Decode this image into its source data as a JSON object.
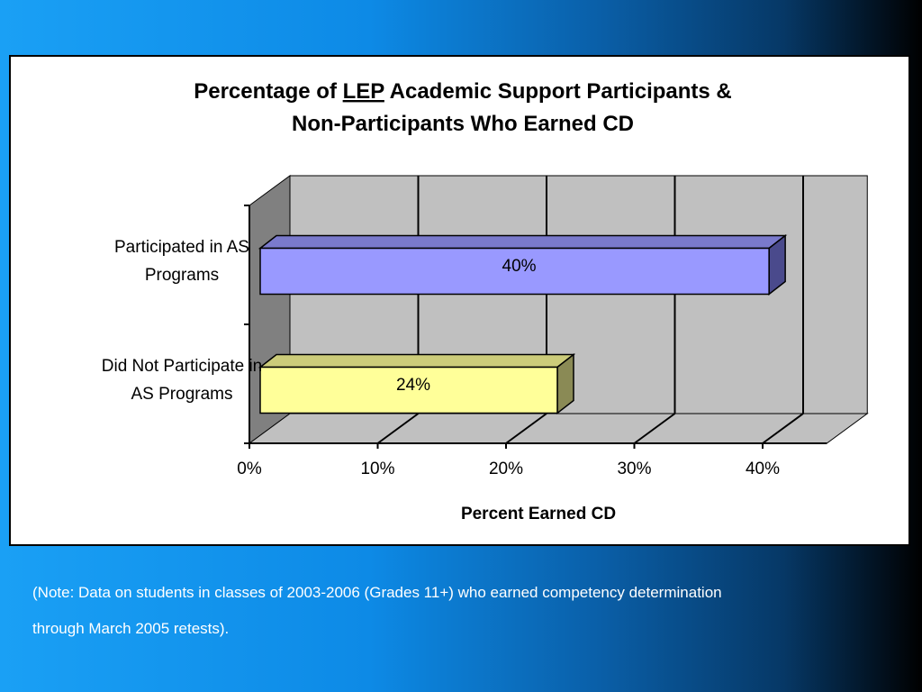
{
  "chart_data": {
    "type": "bar",
    "orientation": "horizontal",
    "three_d": true,
    "title": {
      "prefix": "Percentage of ",
      "emphasis": "LEP",
      "suffix": " Academic Support Participants &",
      "line2": "Non-Participants Who Earned CD"
    },
    "categories": [
      [
        "Participated in AS",
        "Programs"
      ],
      [
        "Did Not Participate in",
        "AS Programs"
      ]
    ],
    "values": [
      40.5,
      24
    ],
    "value_labels": [
      "40%",
      "24%"
    ],
    "bar_colors": [
      {
        "front": "#9999ff",
        "top": "#7a7acc",
        "side": "#4a4a8c"
      },
      {
        "front": "#ffff99",
        "top": "#cccc7a",
        "side": "#8a8a55"
      }
    ],
    "xlabel": "Percent Earned CD",
    "xlim": [
      0,
      45
    ],
    "xticks": [
      0,
      10,
      20,
      30,
      40
    ],
    "xtick_labels": [
      "0%",
      "10%",
      "20%",
      "30%",
      "40%"
    ],
    "grid": true,
    "wall_color": "#c0c0c0",
    "floor_color": "#c0c0c0",
    "side_wall_color": "#808080"
  },
  "note": {
    "line1": "(Note: Data on students in classes of 2003-2006 (Grades 11+) who earned competency determination",
    "line2": "through March 2005 retests)."
  }
}
